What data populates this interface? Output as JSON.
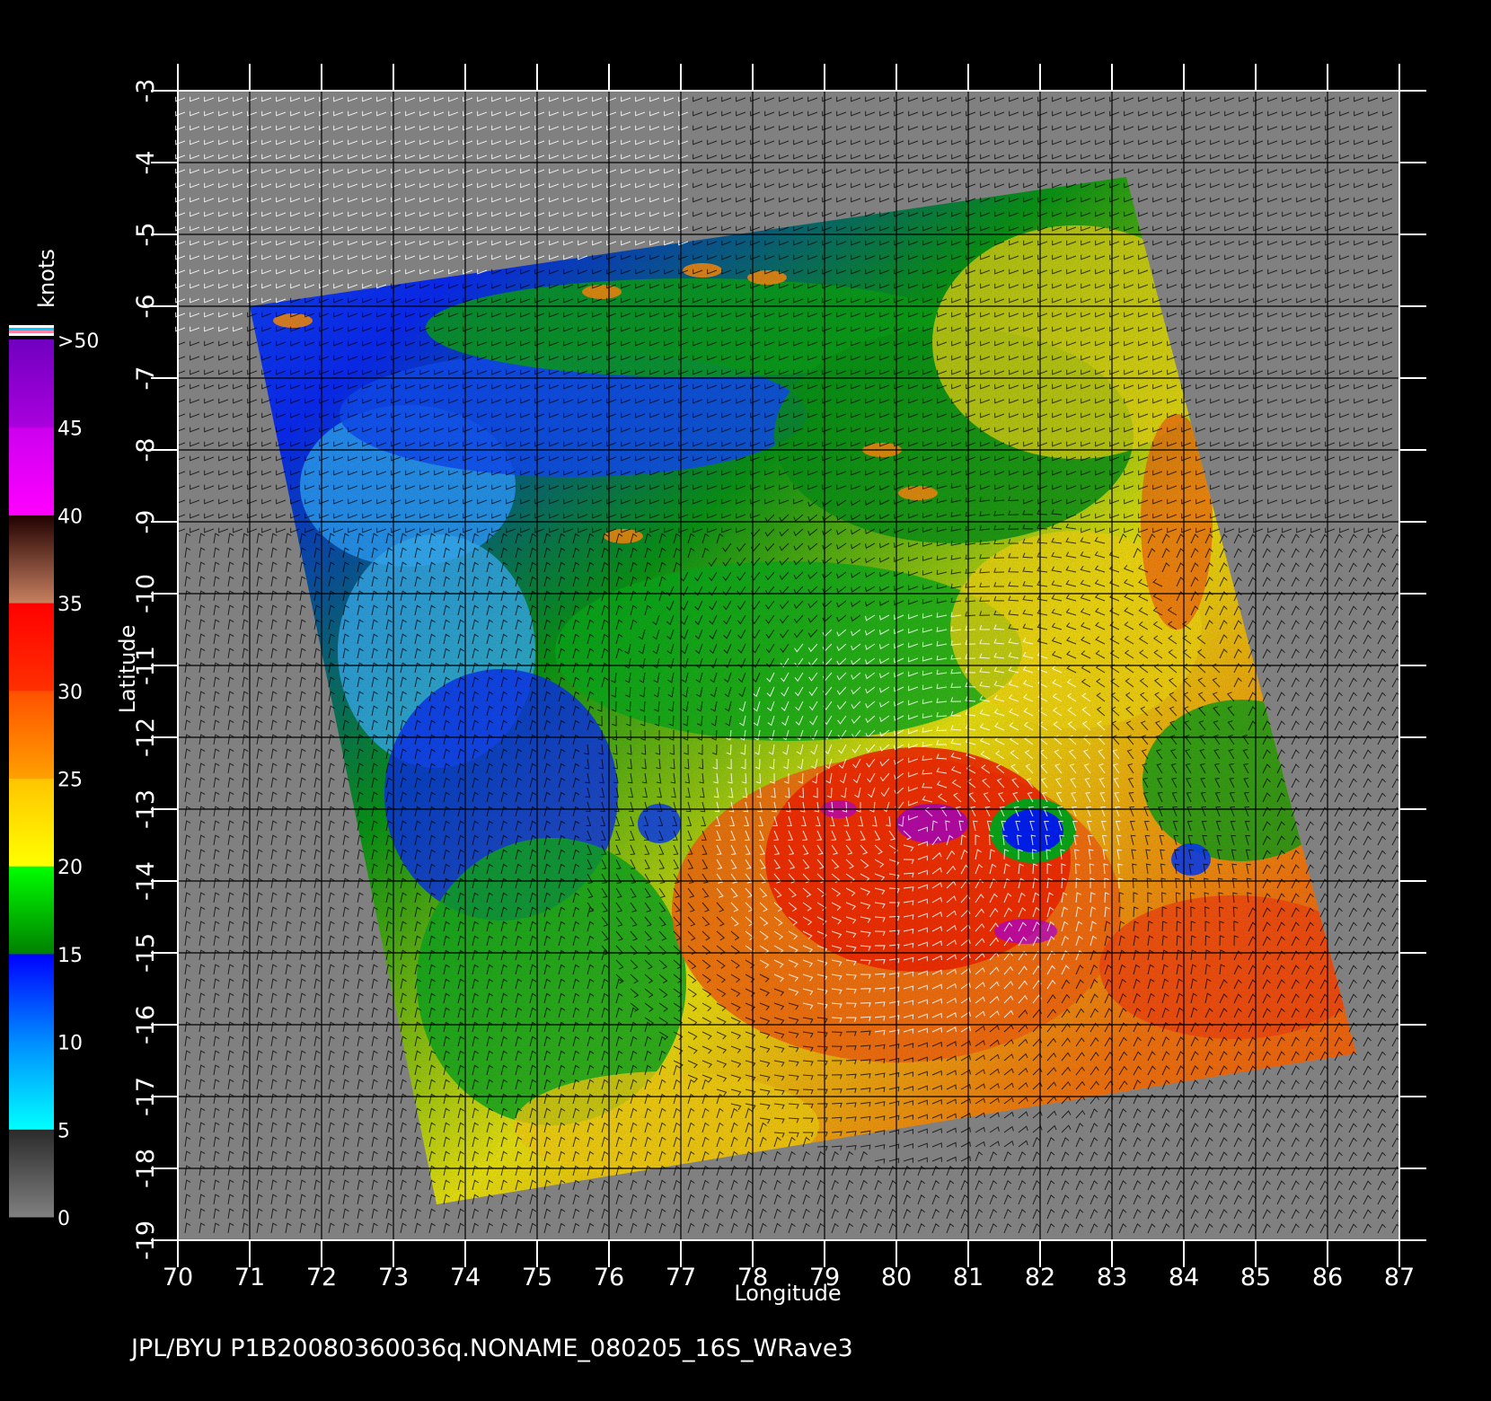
{
  "map": {
    "xlabel": "Longitude",
    "ylabel": "Latitude",
    "lon_range": [
      70,
      87
    ],
    "lat_range": [
      -19,
      -3
    ],
    "lon_ticks": [
      "70",
      "71",
      "72",
      "73",
      "74",
      "75",
      "76",
      "77",
      "78",
      "79",
      "80",
      "81",
      "82",
      "83",
      "84",
      "85",
      "86",
      "87"
    ],
    "lat_ticks": [
      "-3",
      "-4",
      "-5",
      "-6",
      "-7",
      "-8",
      "-9",
      "-10",
      "-11",
      "-12",
      "-13",
      "-14",
      "-15",
      "-16",
      "-17",
      "-18",
      "-19"
    ],
    "caption": "JPL/BYU  P1B20080360036q.NONAME_080205_16S_WRave3",
    "swath_corners_lonlat": [
      [
        71.0,
        -6.0
      ],
      [
        83.2,
        -4.2
      ],
      [
        86.4,
        -16.4
      ],
      [
        73.6,
        -18.5
      ]
    ],
    "storm_center_lonlat": [
      80.3,
      -13.2
    ],
    "eye_center_lonlat": [
      81.9,
      -13.3
    ],
    "colors": {
      "background": "#000000",
      "no_data": "#808080",
      "frame": "#ffffff",
      "grid": "#000000"
    }
  },
  "colorbar": {
    "units": "knots",
    "labels": [
      "0",
      "5",
      "10",
      "15",
      "20",
      "25",
      "30",
      "35",
      "40",
      "45",
      ">50"
    ],
    "bands": [
      {
        "from": 0,
        "to": 5,
        "colors": [
          "#808080",
          "#2a2a2a"
        ]
      },
      {
        "from": 5,
        "to": 10,
        "colors": [
          "#00ffff",
          "#008cff"
        ]
      },
      {
        "from": 10,
        "to": 15,
        "colors": [
          "#008cff",
          "#0000ff"
        ]
      },
      {
        "from": 15,
        "to": 20,
        "colors": [
          "#008000",
          "#00ff00"
        ]
      },
      {
        "from": 20,
        "to": 25,
        "colors": [
          "#ffff00",
          "#ffc400"
        ]
      },
      {
        "from": 25,
        "to": 30,
        "colors": [
          "#ffa000",
          "#ff5000"
        ]
      },
      {
        "from": 30,
        "to": 35,
        "colors": [
          "#ff3000",
          "#ff0000"
        ]
      },
      {
        "from": 35,
        "to": 40,
        "colors": [
          "#c88060",
          "#200000"
        ]
      },
      {
        "from": 40,
        "to": 45,
        "colors": [
          "#ff00ff",
          "#cc00ee"
        ]
      },
      {
        "from": 45,
        "to": 50,
        "colors": [
          "#aa00dd",
          "#7000c0"
        ]
      }
    ]
  }
}
